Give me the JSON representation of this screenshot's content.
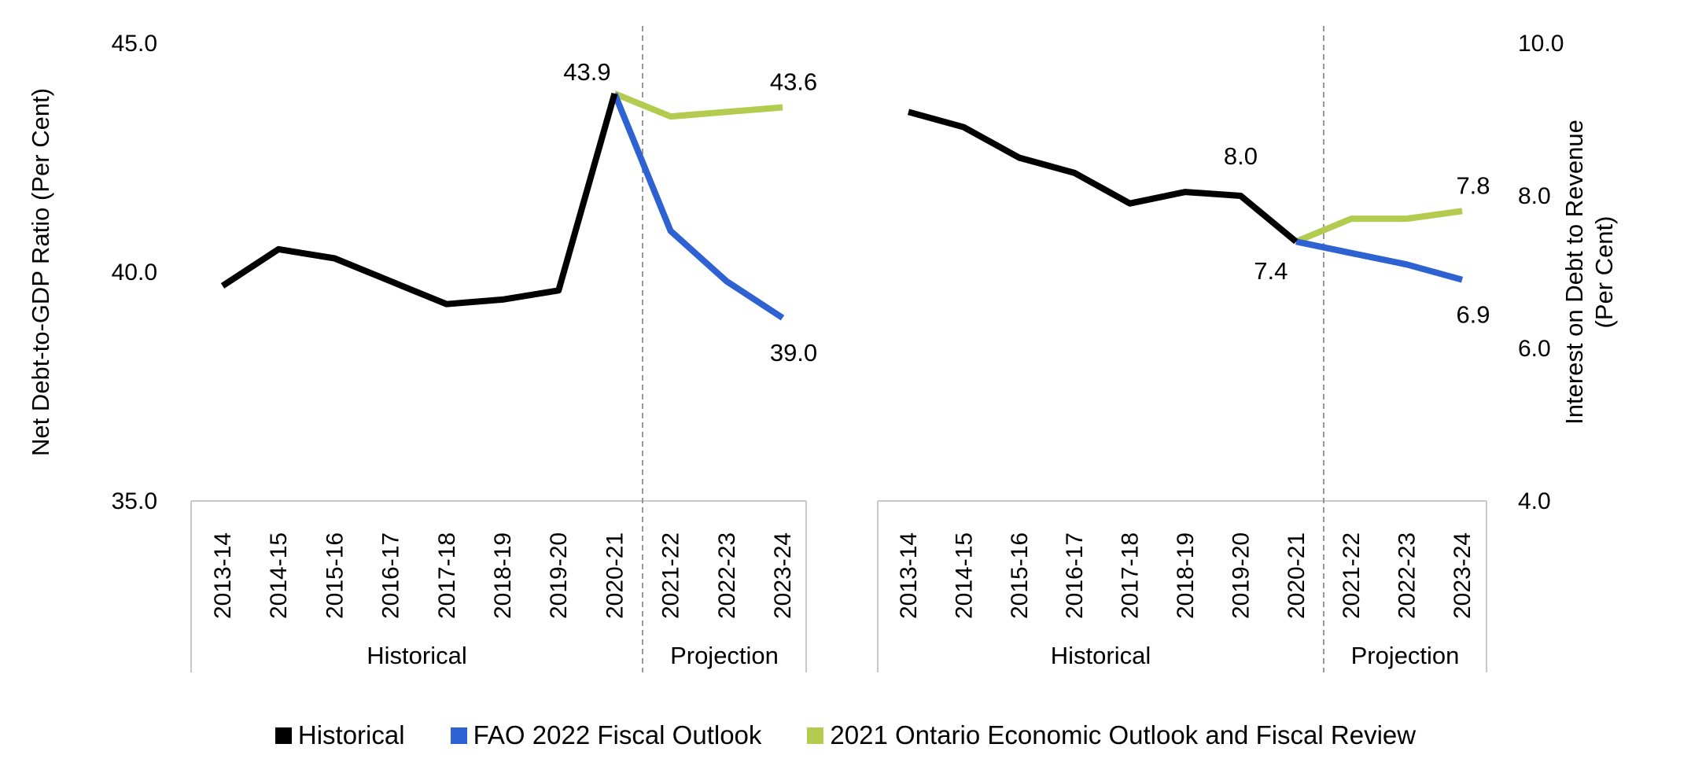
{
  "colors": {
    "historical": "#000000",
    "fao": "#2e62d3",
    "ontario": "#b3cc50",
    "frame": "#c8c8c8",
    "divider": "#7f7f7f"
  },
  "legend": [
    {
      "key": "historical",
      "label": "Historical"
    },
    {
      "key": "fao",
      "label": "FAO 2022 Fiscal Outlook"
    },
    {
      "key": "ontario",
      "label": "2021 Ontario Economic Outlook and Fiscal Review"
    }
  ],
  "chart_data": [
    {
      "type": "line",
      "categories": [
        "2013-14",
        "2014-15",
        "2015-16",
        "2016-17",
        "2017-18",
        "2018-19",
        "2019-20",
        "2020-21",
        "2021-22",
        "2022-23",
        "2023-24"
      ],
      "groups": [
        {
          "label": "Historical",
          "count": 8
        },
        {
          "label": "Projection",
          "count": 3
        }
      ],
      "ylabel": "Net Debt-to-GDP Ratio (Per Cent)",
      "yaxis_side": "left",
      "ylim": [
        35,
        45
      ],
      "yticks": [
        "35.0",
        "40.0",
        "45.0"
      ],
      "series": [
        {
          "key": "historical",
          "name": "Historical",
          "values": [
            39.7,
            40.5,
            40.3,
            39.8,
            39.3,
            39.4,
            39.6,
            43.9,
            null,
            null,
            null
          ]
        },
        {
          "key": "fao",
          "name": "FAO 2022 Fiscal Outlook",
          "values": [
            null,
            null,
            null,
            null,
            null,
            null,
            null,
            43.9,
            40.9,
            39.8,
            39.0
          ]
        },
        {
          "key": "ontario",
          "name": "2021 Ontario Economic Outlook and Fiscal Review",
          "values": [
            null,
            null,
            null,
            null,
            null,
            null,
            null,
            43.9,
            43.4,
            43.5,
            43.6
          ]
        }
      ],
      "data_labels": [
        {
          "series": "historical",
          "index": 7,
          "text": "43.9",
          "pos": "above-left"
        },
        {
          "series": "ontario",
          "index": 10,
          "text": "43.6",
          "pos": "above"
        },
        {
          "series": "fao",
          "index": 10,
          "text": "39.0",
          "pos": "below"
        }
      ]
    },
    {
      "type": "line",
      "categories": [
        "2013-14",
        "2014-15",
        "2015-16",
        "2016-17",
        "2017-18",
        "2018-19",
        "2019-20",
        "2020-21",
        "2021-22",
        "2022-23",
        "2023-24"
      ],
      "groups": [
        {
          "label": "Historical",
          "count": 8
        },
        {
          "label": "Projection",
          "count": 3
        }
      ],
      "ylabel": "Interest on Debt to Revenue (Per Cent)",
      "ylabel_lines": [
        "Interest on Debt to Revenue",
        "(Per Cent)"
      ],
      "yaxis_side": "right",
      "ylim": [
        4,
        10
      ],
      "yticks": [
        "4.0",
        "6.0",
        "8.0",
        "10.0"
      ],
      "series": [
        {
          "key": "historical",
          "name": "Historical",
          "values": [
            9.1,
            8.9,
            8.5,
            8.3,
            7.9,
            8.05,
            8.0,
            7.4,
            null,
            null,
            null
          ]
        },
        {
          "key": "fao",
          "name": "FAO 2022 Fiscal Outlook",
          "values": [
            null,
            null,
            null,
            null,
            null,
            null,
            null,
            7.4,
            7.25,
            7.1,
            6.9
          ]
        },
        {
          "key": "ontario",
          "name": "2021 Ontario Economic Outlook and Fiscal Review",
          "values": [
            null,
            null,
            null,
            null,
            null,
            null,
            null,
            7.4,
            7.7,
            7.7,
            7.8
          ]
        }
      ],
      "data_labels": [
        {
          "series": "historical",
          "index": 6,
          "text": "8.0",
          "pos": "above-high"
        },
        {
          "series": "historical",
          "index": 7,
          "text": "7.4",
          "pos": "below-left"
        },
        {
          "series": "ontario",
          "index": 10,
          "text": "7.8",
          "pos": "above"
        },
        {
          "series": "fao",
          "index": 10,
          "text": "6.9",
          "pos": "below"
        }
      ]
    }
  ]
}
